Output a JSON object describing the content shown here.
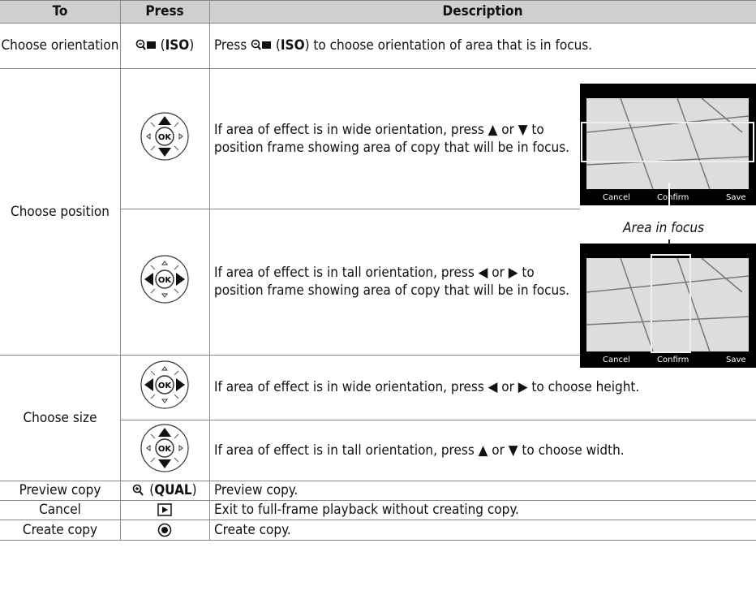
{
  "header": [
    "To",
    "Press",
    "Description"
  ],
  "icon_ok": "OK",
  "rows": [
    {
      "to": "Choose orientation",
      "press": [
        "(",
        "ISO",
        ")"
      ],
      "description": [
        "Press",
        "(",
        "ISO",
        ") to choose orientation of area that is in focus."
      ]
    },
    {
      "to": "Choose position",
      "description": "If area of effect is in wide orientation, press ▲ or ▼ to position frame showing area of copy that will be in focus."
    },
    {
      "description": "If area of effect is in tall orientation, press ◀ or ▶ to position frame showing area of copy that will be in focus."
    },
    {
      "to": "Choose size",
      "description": "If area of effect is in wide orientation, press ◀ or ▶ to choose height."
    },
    {
      "description": "If area of effect is in tall orientation, press ▲ or ▼ to choose width."
    },
    {
      "to": "Preview copy",
      "press": [
        "(",
        "QUAL",
        ")"
      ],
      "description": "Preview copy."
    },
    {
      "to": "Cancel",
      "description": "Exit to full-frame playback without creating copy."
    },
    {
      "to": "Create copy",
      "description": "Create copy."
    }
  ],
  "annotation": "Area in focus",
  "screen_buttons": [
    "Cancel",
    "Confirm",
    "Save"
  ]
}
